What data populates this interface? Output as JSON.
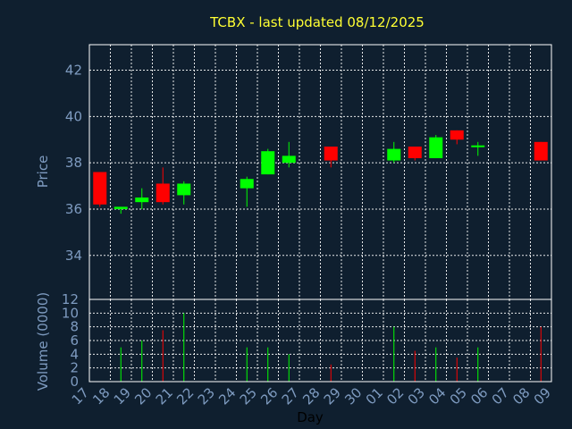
{
  "chart_data": {
    "type": "candlestick",
    "title": "TCBX - last updated 08/12/2025",
    "xlabel": "Day",
    "x_ticks": [
      "17",
      "18",
      "19",
      "20",
      "21",
      "22",
      "23",
      "24",
      "25",
      "26",
      "27",
      "28",
      "29",
      "30",
      "01",
      "02",
      "03",
      "04",
      "05",
      "06",
      "07",
      "08",
      "09"
    ],
    "price_panel": {
      "ylabel": "Price",
      "ylim": [
        32.1,
        43.1
      ],
      "y_ticks": [
        34,
        36,
        38,
        40,
        42
      ],
      "grid": true
    },
    "volume_panel": {
      "ylabel": "Volume (0000)",
      "ylim": [
        0,
        12
      ],
      "y_ticks": [
        0,
        2,
        4,
        6,
        8,
        10,
        12
      ],
      "grid": true
    },
    "colors": {
      "up": "#00ff00",
      "down": "#ff0000",
      "title": "#ffff33",
      "axis_text": "#7e9bc0",
      "background": "#0f1f2f"
    },
    "candles": [
      {
        "day": "17",
        "open": 37.6,
        "high": 37.6,
        "low": 36.1,
        "close": 36.2,
        "volume": 0
      },
      {
        "day": "18",
        "open": 36.0,
        "high": 36.1,
        "low": 35.8,
        "close": 36.1,
        "volume": 5
      },
      {
        "day": "19",
        "open": 36.3,
        "high": 36.9,
        "low": 36.0,
        "close": 36.5,
        "volume": 6
      },
      {
        "day": "20",
        "open": 37.1,
        "high": 37.8,
        "low": 36.2,
        "close": 36.3,
        "volume": 7.5
      },
      {
        "day": "21",
        "open": 36.6,
        "high": 37.2,
        "low": 36.2,
        "close": 37.1,
        "volume": 10
      },
      {
        "day": "24",
        "open": 36.9,
        "high": 37.4,
        "low": 36.1,
        "close": 37.3,
        "volume": 5
      },
      {
        "day": "25",
        "open": 37.5,
        "high": 38.6,
        "low": 37.5,
        "close": 38.5,
        "volume": 5
      },
      {
        "day": "26",
        "open": 38.0,
        "high": 38.9,
        "low": 37.8,
        "close": 38.3,
        "volume": 4
      },
      {
        "day": "28",
        "open": 38.7,
        "high": 38.7,
        "low": 37.8,
        "close": 38.1,
        "volume": 2.5
      },
      {
        "day": "01",
        "open": 38.1,
        "high": 38.9,
        "low": 38.0,
        "close": 38.6,
        "volume": 8
      },
      {
        "day": "02",
        "open": 38.7,
        "high": 38.7,
        "low": 38.1,
        "close": 38.2,
        "volume": 4.5
      },
      {
        "day": "03",
        "open": 38.2,
        "high": 39.2,
        "low": 38.2,
        "close": 39.1,
        "volume": 5
      },
      {
        "day": "04",
        "open": 39.4,
        "high": 39.4,
        "low": 38.8,
        "close": 39.0,
        "volume": 3.5
      },
      {
        "day": "05",
        "open": 38.7,
        "high": 38.9,
        "low": 38.3,
        "close": 38.75,
        "volume": 5
      },
      {
        "day": "08",
        "open": 38.9,
        "high": 38.9,
        "low": 38.1,
        "close": 38.1,
        "volume": 8
      }
    ]
  }
}
